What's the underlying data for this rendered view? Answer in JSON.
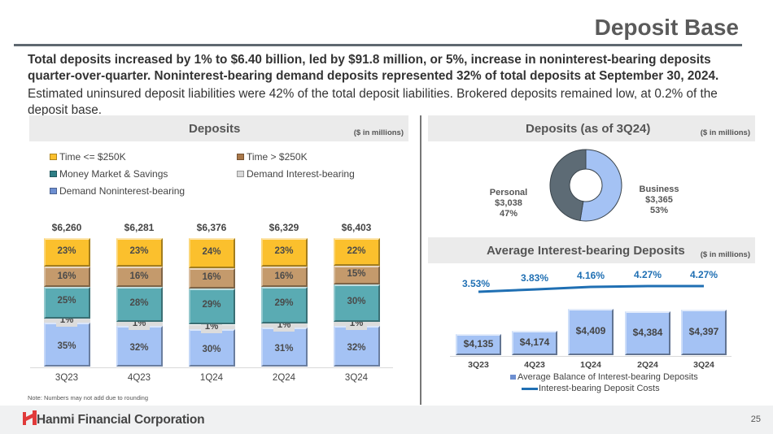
{
  "header": {
    "title": "Deposit Base"
  },
  "summary": {
    "bold_text": "Total deposits increased by 1% to $6.40 billion, led by $91.8 million, or 5%, increase in noninterest-bearing deposits quarter-over-quarter. Noninterest-bearing demand deposits represented 32% of total deposits at September 30, 2024.",
    "regular_text": "Estimated uninsured deposit liabilities were 42% of the total deposit liabilities. Brokered deposits remained low, at 0.2% of the deposit base."
  },
  "footer": {
    "note": "Note: Numbers may not add due to rounding",
    "company": "Hanmi Financial Corporation",
    "logo_icon": "hanmi-logo-icon",
    "page_number": "25"
  },
  "colors": {
    "time_le_250k": "#fbc02d",
    "time_gt_250k": "#c49a6c",
    "money_market": "#5aabb3",
    "demand_interest": "#dcdcdc",
    "demand_noninterest": "#a4c2f4",
    "personal": "#5d6b75",
    "business": "#a4c2f4",
    "cost_line": "#1f6fb3",
    "brand_red": "#e03a3a"
  },
  "chart_data": [
    {
      "type": "bar",
      "stacked": true,
      "title": "Deposits",
      "unit_note": "($ in millions)",
      "categories": [
        "3Q23",
        "4Q23",
        "1Q24",
        "2Q24",
        "3Q24"
      ],
      "totals": [
        "$6,260",
        "$6,281",
        "$6,376",
        "$6,329",
        "$6,403"
      ],
      "series": [
        {
          "name": "Demand Noninterest-bearing",
          "values": [
            35,
            32,
            30,
            31,
            32
          ],
          "labels": [
            "35%",
            "32%",
            "30%",
            "31%",
            "32%"
          ]
        },
        {
          "name": "Demand Interest-bearing",
          "values": [
            1,
            1,
            1,
            1,
            1
          ],
          "labels": [
            "1%",
            "1%",
            "1%",
            "1%",
            "1%"
          ]
        },
        {
          "name": "Money Market & Savings",
          "values": [
            25,
            28,
            29,
            29,
            30
          ],
          "labels": [
            "25%",
            "28%",
            "29%",
            "29%",
            "30%"
          ]
        },
        {
          "name": "Time > $250K",
          "values": [
            16,
            16,
            16,
            16,
            15
          ],
          "labels": [
            "16%",
            "16%",
            "16%",
            "16%",
            "15%"
          ]
        },
        {
          "name": "Time <= $250K",
          "values": [
            23,
            23,
            24,
            23,
            22
          ],
          "labels": [
            "23%",
            "23%",
            "24%",
            "23%",
            "22%"
          ]
        }
      ],
      "legend": [
        "Time <= $250K",
        "Time > $250K",
        "Money Market & Savings",
        "Demand Interest-bearing",
        "Demand Noninterest-bearing"
      ],
      "legend_position": "top",
      "grid": false
    },
    {
      "type": "pie",
      "donut": true,
      "title": "Deposits (as of 3Q24)",
      "unit_note": "($ in millions)",
      "slices": [
        {
          "name": "Business",
          "value": 3365,
          "value_label": "$3,365",
          "percent": "53%"
        },
        {
          "name": "Personal",
          "value": 3038,
          "value_label": "$3,038",
          "percent": "47%"
        }
      ]
    },
    {
      "type": "bar",
      "title": "Average Interest-bearing Deposits",
      "unit_note": "($ in millions)",
      "categories": [
        "3Q23",
        "4Q23",
        "1Q24",
        "2Q24",
        "3Q24"
      ],
      "series": [
        {
          "name": "Average Balance of Interest-bearing Deposits",
          "type": "bar",
          "values": [
            4135,
            4174,
            4409,
            4384,
            4397
          ],
          "labels": [
            "$4,135",
            "$4,174",
            "$4,409",
            "$4,384",
            "$4,397"
          ]
        },
        {
          "name": "Interest-bearing Deposit Costs",
          "type": "line",
          "values": [
            3.53,
            3.83,
            4.16,
            4.27,
            4.27
          ],
          "labels": [
            "3.53%",
            "3.83%",
            "4.16%",
            "4.27%",
            "4.27%"
          ]
        }
      ],
      "legend": [
        "Average Balance of Interest-bearing Deposits",
        "Interest-bearing Deposit Costs"
      ],
      "legend_position": "bottom",
      "grid": false
    }
  ]
}
